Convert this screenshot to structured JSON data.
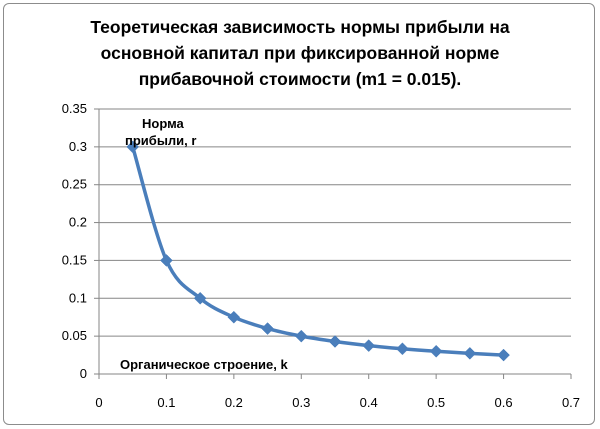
{
  "chart_data": {
    "type": "line",
    "title_lines": [
      "Теоретическая зависимость нормы прибыли на",
      "основной капитал при фиксированной норме",
      "прибавочной стоимости (m1 = 0.015)."
    ],
    "x": [
      0.05,
      0.1,
      0.15,
      0.2,
      0.25,
      0.3,
      0.35,
      0.4,
      0.45,
      0.5,
      0.55,
      0.6
    ],
    "series": [
      {
        "values": [
          0.3,
          0.15,
          0.1,
          0.075,
          0.06,
          0.05,
          0.0429,
          0.0375,
          0.0333,
          0.03,
          0.0273,
          0.025
        ]
      }
    ],
    "xlim": [
      0,
      0.7
    ],
    "ylim": [
      0,
      0.35
    ],
    "x_ticks": [
      "0",
      "0.1",
      "0.2",
      "0.3",
      "0.4",
      "0.5",
      "0.6",
      "0.7"
    ],
    "y_ticks": [
      "0",
      "0.05",
      "0.1",
      "0.15",
      "0.2",
      "0.25",
      "0.3",
      "0.35"
    ],
    "ylabel_lines": [
      "Норма",
      "прибыли, r"
    ],
    "xlabel": "Органическое строение, k",
    "grid": "horizontal",
    "legend": "none",
    "colors": {
      "series": "#4a7ebb",
      "grid": "#868686"
    }
  }
}
